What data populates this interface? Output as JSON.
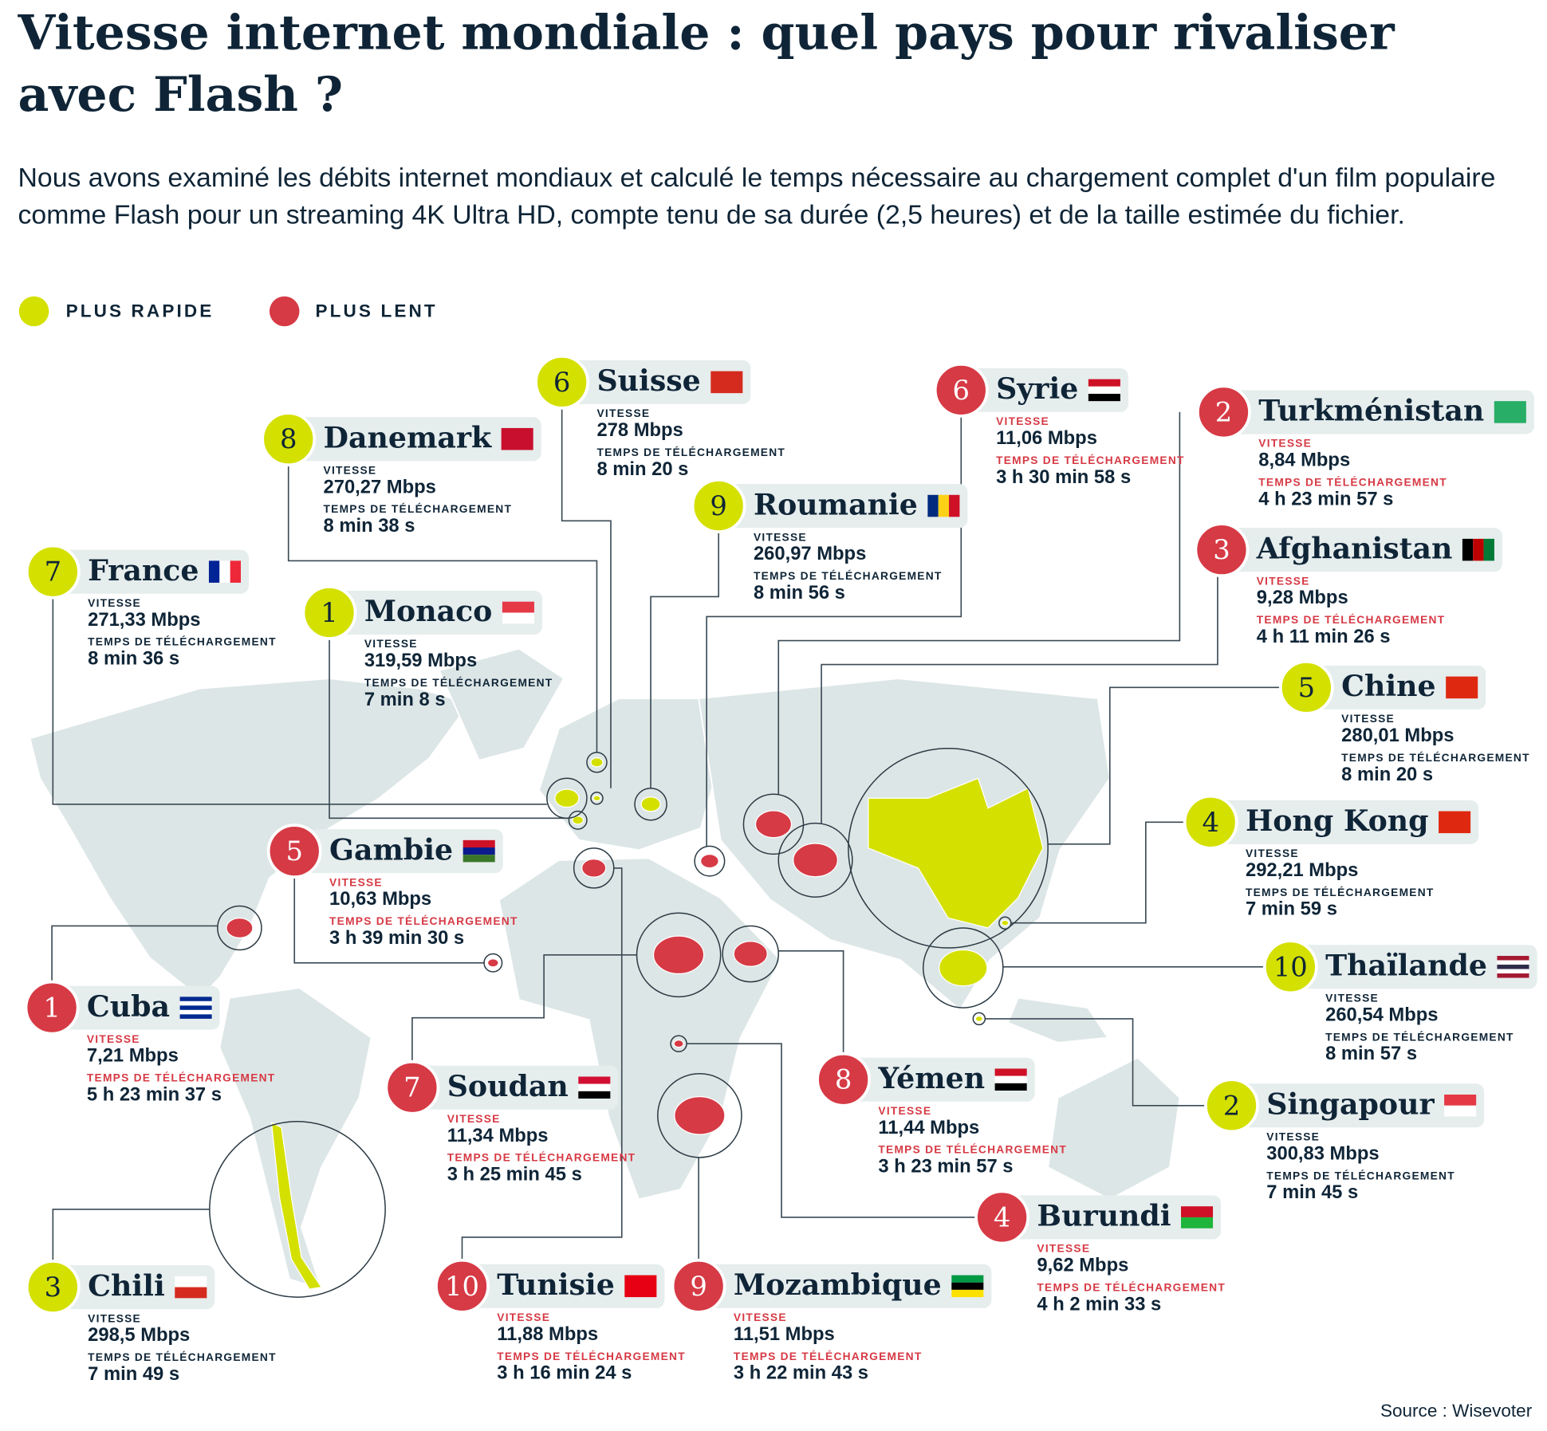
{
  "header": {
    "title": "Vitesse internet mondiale : quel pays pour rivaliser avec Flash ?",
    "subtitle": "Nous avons examiné les débits internet mondiaux et calculé le temps nécessaire au chargement complet d'un film populaire comme Flash pour un streaming 4K Ultra HD, compte tenu de sa durée (2,5 heures) et de la taille estimée du fichier."
  },
  "legend": [
    {
      "label": "PLUS RAPIDE",
      "color": "#d4e000"
    },
    {
      "label": "PLUS LENT",
      "color": "#d63a45"
    }
  ],
  "speed_label": "VITESSE",
  "time_label": "TEMPS DE TÉLÉCHARGEMENT",
  "countries": [
    {
      "rank": 1,
      "name": "Monaco",
      "speed": "319,59 Mbps",
      "time": "7 min 8 s",
      "color": "#d4e000"
    },
    {
      "rank": 2,
      "name": "Singapour",
      "speed": "300,83 Mbps",
      "time": "7 min 45 s",
      "color": "#d4e000"
    },
    {
      "rank": 3,
      "name": "Chili",
      "speed": "298,5 Mbps",
      "time": "7 min 49 s",
      "color": "#d4e000"
    },
    {
      "rank": 4,
      "name": "Hong Kong",
      "speed": "292,21 Mbps",
      "time": "7 min 59 s",
      "color": "#d4e000"
    },
    {
      "rank": 5,
      "name": "Chine",
      "speed": "280,01 Mbps",
      "time": "8 min 20 s",
      "color": "#d4e000"
    },
    {
      "rank": 6,
      "name": "Suisse",
      "speed": "278 Mbps",
      "time": "8 min 20 s",
      "color": "#d4e000"
    },
    {
      "rank": 7,
      "name": "France",
      "speed": "271,33 Mbps",
      "time": "8 min 36 s",
      "color": "#d4e000"
    },
    {
      "rank": 8,
      "name": "Danemark",
      "speed": "270,27 Mbps",
      "time": "8 min 38 s",
      "color": "#d4e000"
    },
    {
      "rank": 9,
      "name": "Roumanie",
      "speed": "260,97 Mbps",
      "time": "8 min 56 s",
      "color": "#d4e000"
    },
    {
      "rank": 10,
      "name": "Thaïlande",
      "speed": "260,54 Mbps",
      "time": "8 min 57 s",
      "color": "#d4e000"
    },
    {
      "rank": 1,
      "name": "Cuba",
      "speed": "7,21 Mbps",
      "time": "5 h 23 min 37 s",
      "color": "#d63a45"
    },
    {
      "rank": 2,
      "name": "Turkménistan",
      "speed": "8,84 Mbps",
      "time": "4 h 23 min 57 s",
      "color": "#d63a45"
    },
    {
      "rank": 3,
      "name": "Afghanistan",
      "speed": "9,28 Mbps",
      "time": "4 h 11 min 26 s",
      "color": "#d63a45"
    },
    {
      "rank": 4,
      "name": "Burundi",
      "speed": "9,62 Mbps",
      "time": "4 h 2 min 33 s",
      "color": "#d63a45"
    },
    {
      "rank": 5,
      "name": "Gambie",
      "speed": "10,63 Mbps",
      "time": "3 h 39 min 30 s",
      "color": "#d63a45"
    },
    {
      "rank": 6,
      "name": "Syrie",
      "speed": "11,06 Mbps",
      "time": "3 h 30 min 58 s",
      "color": "#d63a45"
    },
    {
      "rank": 7,
      "name": "Soudan",
      "speed": "11,34 Mbps",
      "time": "3 h 25 min 45 s",
      "color": "#d63a45"
    },
    {
      "rank": 8,
      "name": "Yémen",
      "speed": "11,44 Mbps",
      "time": "3 h 23 min 57 s",
      "color": "#d63a45"
    },
    {
      "rank": 9,
      "name": "Mozambique",
      "speed": "11,51 Mbps",
      "time": "3 h 22 min 43 s",
      "color": "#d63a45"
    },
    {
      "rank": 10,
      "name": "Tunisie",
      "speed": "11,88 Mbps",
      "time": "3 h 16 min 24 s",
      "color": "#d63a45"
    }
  ],
  "source": "Source : Wisevoter"
}
